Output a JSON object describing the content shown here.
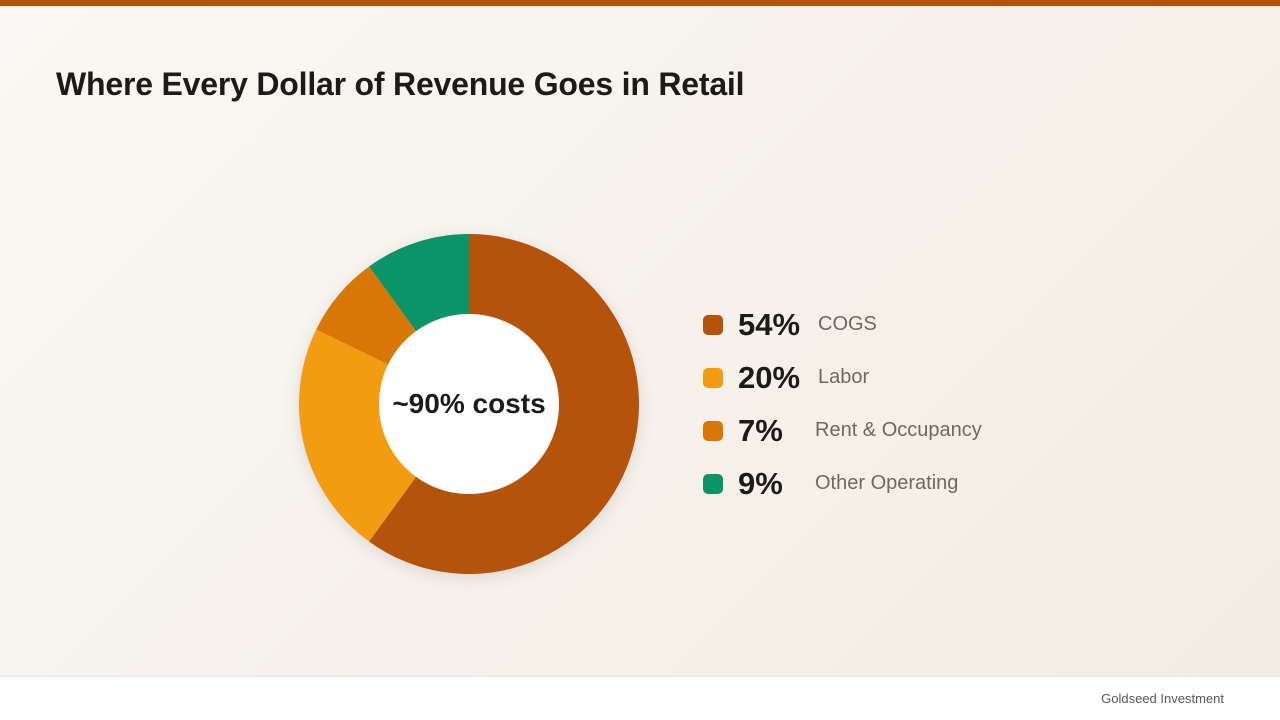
{
  "slide": {
    "title": "Where Every Dollar of Revenue Goes in Retail",
    "accent_color": "#b5530b"
  },
  "chart_data": {
    "type": "pie",
    "center_label": "~90% costs",
    "slices": [
      {
        "label": "COGS",
        "value": 54,
        "display": "54%",
        "color": "#b5530b"
      },
      {
        "label": "Labor",
        "value": 20,
        "display": "20%",
        "color": "#f39c12"
      },
      {
        "label": "Rent & Occupancy",
        "value": 7,
        "display": "7%",
        "color": "#d97706"
      },
      {
        "label": "Other Operating",
        "value": 9,
        "display": "9%",
        "color": "#0a9467"
      }
    ],
    "legend_position": "right"
  },
  "footer": {
    "brand": "Goldseed Investment"
  }
}
